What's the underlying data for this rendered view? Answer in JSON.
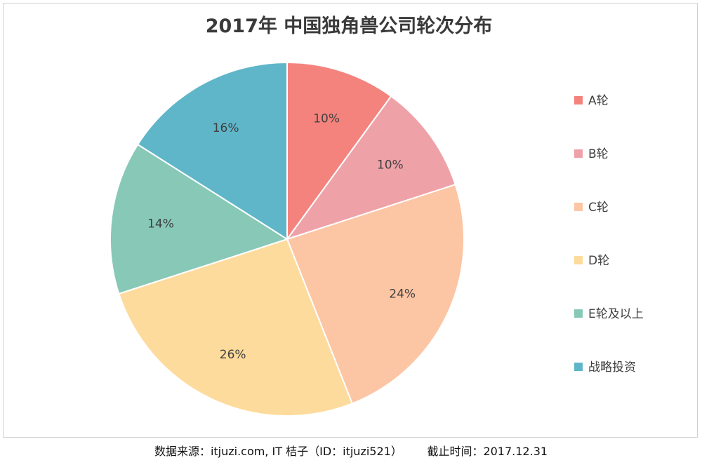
{
  "chart_data": {
    "type": "pie",
    "title": "2017年 中国独角兽公司轮次分布",
    "categories": [
      "A轮",
      "B轮",
      "C轮",
      "D轮",
      "E轮及以上",
      "战略投资"
    ],
    "values": [
      10,
      10,
      24,
      26,
      14,
      16
    ],
    "labels": [
      "10%",
      "10%",
      "24%",
      "26%",
      "14%",
      "16%"
    ],
    "colors": [
      "#f4837d",
      "#efa1a8",
      "#fcc5a4",
      "#fddb9c",
      "#87c8b7",
      "#5fb6c9"
    ],
    "legend_position": "right"
  },
  "footer": {
    "source": "数据来源：itjuzi.com, IT 桔子（ID：itjuzi521）",
    "cutoff": "截止时间：2017.12.31"
  }
}
